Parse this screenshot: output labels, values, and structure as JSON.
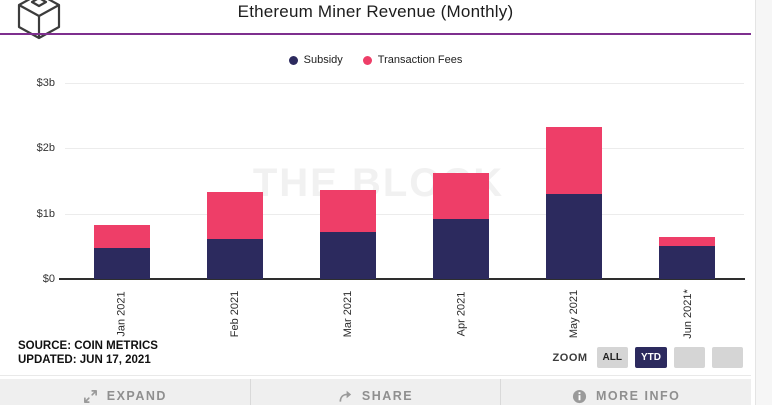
{
  "header": {
    "title": "Ethereum Miner Revenue (Monthly)",
    "accent_line_color": "#7e2f8e"
  },
  "watermark": "THE BLOCK",
  "legend": [
    {
      "label": "Subsidy",
      "color": "#2c2a5e"
    },
    {
      "label": "Transaction Fees",
      "color": "#ee3e68"
    }
  ],
  "chart_data": {
    "type": "bar",
    "stacked": true,
    "title": "Ethereum Miner Revenue (Monthly)",
    "categories": [
      "Jan 2021",
      "Feb 2021",
      "Mar 2021",
      "Apr 2021",
      "May 2021",
      "Jun 2021*"
    ],
    "series": [
      {
        "name": "Subsidy",
        "color": "#2c2a5e",
        "values": [
          0.48,
          0.62,
          0.72,
          0.92,
          1.3,
          0.51
        ]
      },
      {
        "name": "Transaction Fees",
        "color": "#ee3e68",
        "values": [
          0.34,
          0.72,
          0.65,
          0.71,
          1.03,
          0.14
        ]
      }
    ],
    "units": "USD billions",
    "ylim": [
      0,
      3
    ],
    "ytick_labels": [
      "$0",
      "$1b",
      "$2b",
      "$3b"
    ],
    "grid": true,
    "legend_position": "top"
  },
  "footer": {
    "source_line1": "SOURCE: COIN METRICS",
    "source_line2": "UPDATED: JUN 17, 2021",
    "zoom_label": "ZOOM",
    "zoom_buttons": [
      {
        "label": "ALL",
        "active": false
      },
      {
        "label": "YTD",
        "active": true
      },
      {
        "label": "",
        "active": false
      },
      {
        "label": "",
        "active": false
      }
    ],
    "active_button_color": "#2c2a5e"
  },
  "action_bar": {
    "expand_label": "EXPAND",
    "share_label": "SHARE",
    "more_info_label": "MORE INFO"
  }
}
